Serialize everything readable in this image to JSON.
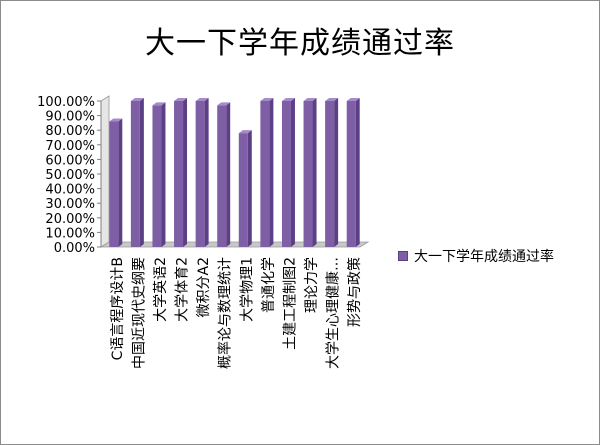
{
  "chart_data": {
    "type": "bar",
    "title": "大一下学年成绩通过率",
    "categories": [
      "C语言程序设计B",
      "中国近现代史纲要",
      "大学英语2",
      "大学体育2",
      "微积分A2",
      "概率论与数理统计",
      "大学物理1",
      "普通化学",
      "土建工程制图2",
      "理论力学",
      "大学生心理健康…",
      "形势与政策"
    ],
    "series": [
      {
        "name": "大一下学年成绩通过率",
        "values": [
          0.86,
          1.0,
          0.97,
          1.0,
          1.0,
          0.97,
          0.78,
          1.0,
          1.0,
          1.0,
          1.0,
          1.0
        ]
      }
    ],
    "yticks": [
      "0.00%",
      "10.00%",
      "20.00%",
      "30.00%",
      "40.00%",
      "50.00%",
      "60.00%",
      "70.00%",
      "80.00%",
      "90.00%",
      "100.00%"
    ],
    "ylim": [
      0,
      1
    ],
    "grid": false,
    "legend_position": "right",
    "colors": {
      "bar": "#7e5fa6",
      "bar_dark": "#5d3f85",
      "bar_top": "#a58bc9",
      "floor": "#c8c8c8",
      "wall": "#e6e6e6"
    }
  }
}
